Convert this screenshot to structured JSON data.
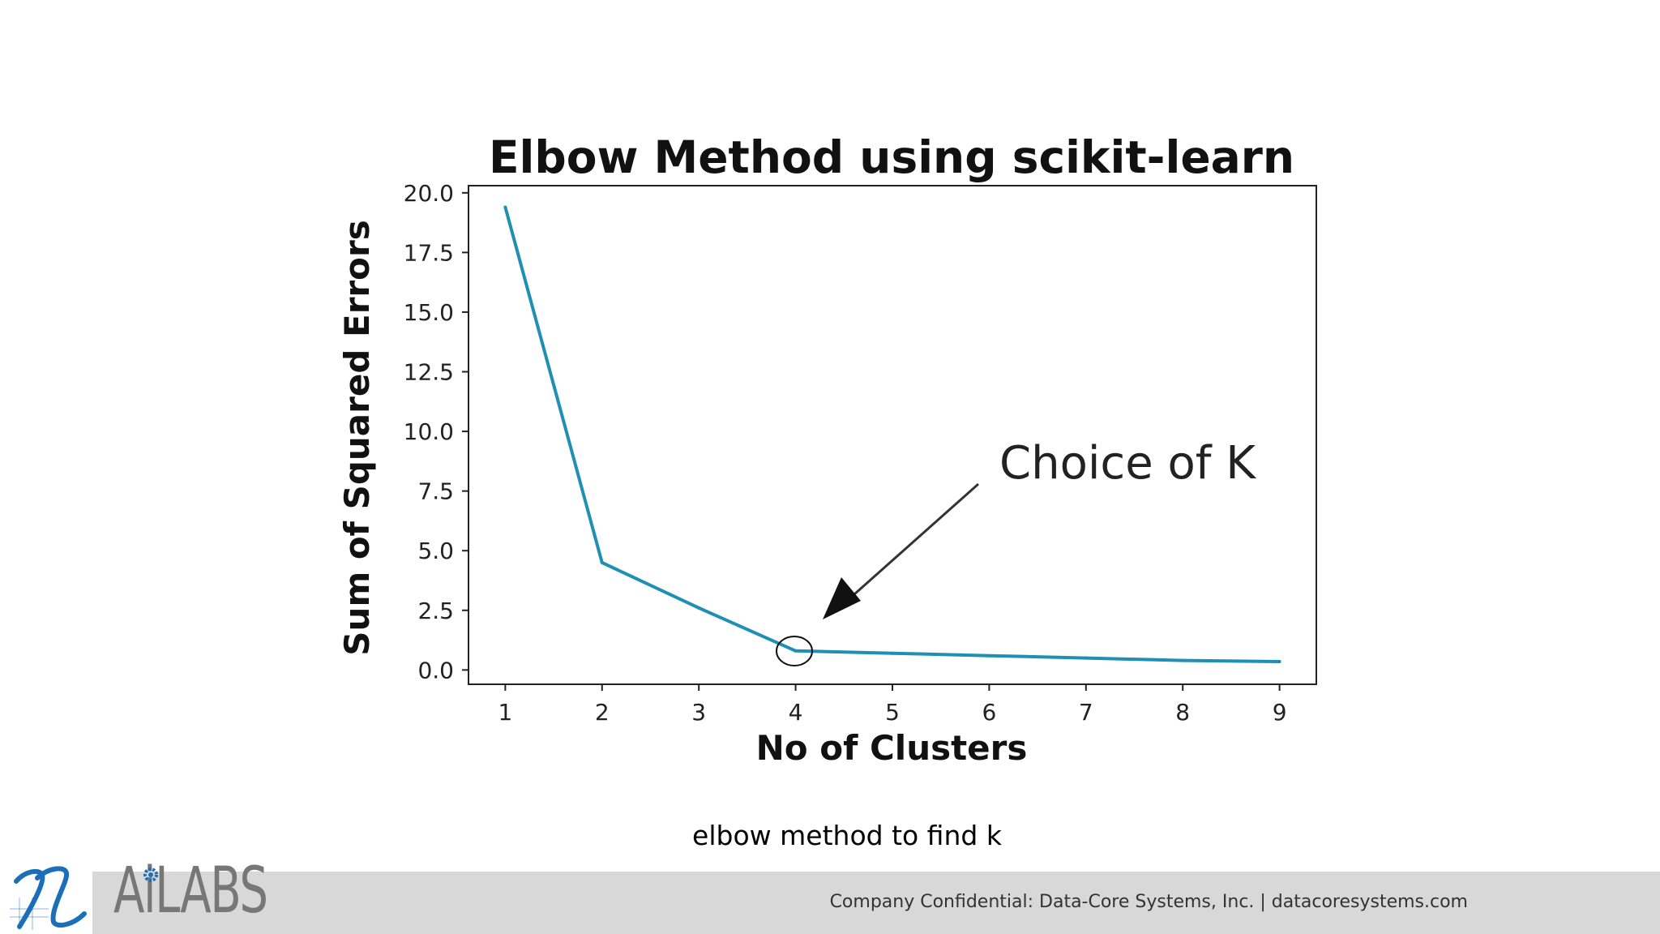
{
  "caption": "elbow method to find k",
  "footer": {
    "text": "Company Confidential: Data-Core Systems, Inc.  |  datacoresystems.com",
    "brand": "AiLABS"
  },
  "colors": {
    "line": "#1f8fb4",
    "footer_bg": "#d8d8d8",
    "logo_blue": "#1a6fb8"
  },
  "chart_data": {
    "type": "line",
    "title": "Elbow Method using scikit-learn",
    "xlabel": "No of Clusters",
    "ylabel": "Sum of Squared Errors",
    "x": [
      1,
      2,
      3,
      4,
      5,
      6,
      7,
      8,
      9
    ],
    "series": [
      {
        "values": [
          19.4,
          4.5,
          2.6,
          0.8,
          0.7,
          0.6,
          0.5,
          0.4,
          0.35
        ]
      }
    ],
    "xticks": [
      "1",
      "2",
      "3",
      "4",
      "5",
      "6",
      "7",
      "8",
      "9"
    ],
    "yticks": [
      "0.0",
      "2.5",
      "5.0",
      "7.5",
      "10.0",
      "12.5",
      "15.0",
      "17.5",
      "20.0"
    ],
    "xlim": [
      0.62,
      9.38
    ],
    "ylim": [
      -0.6,
      20.3
    ],
    "grid": false,
    "annotation": {
      "text": "Choice of K",
      "x": 4,
      "y": 0.8
    }
  }
}
